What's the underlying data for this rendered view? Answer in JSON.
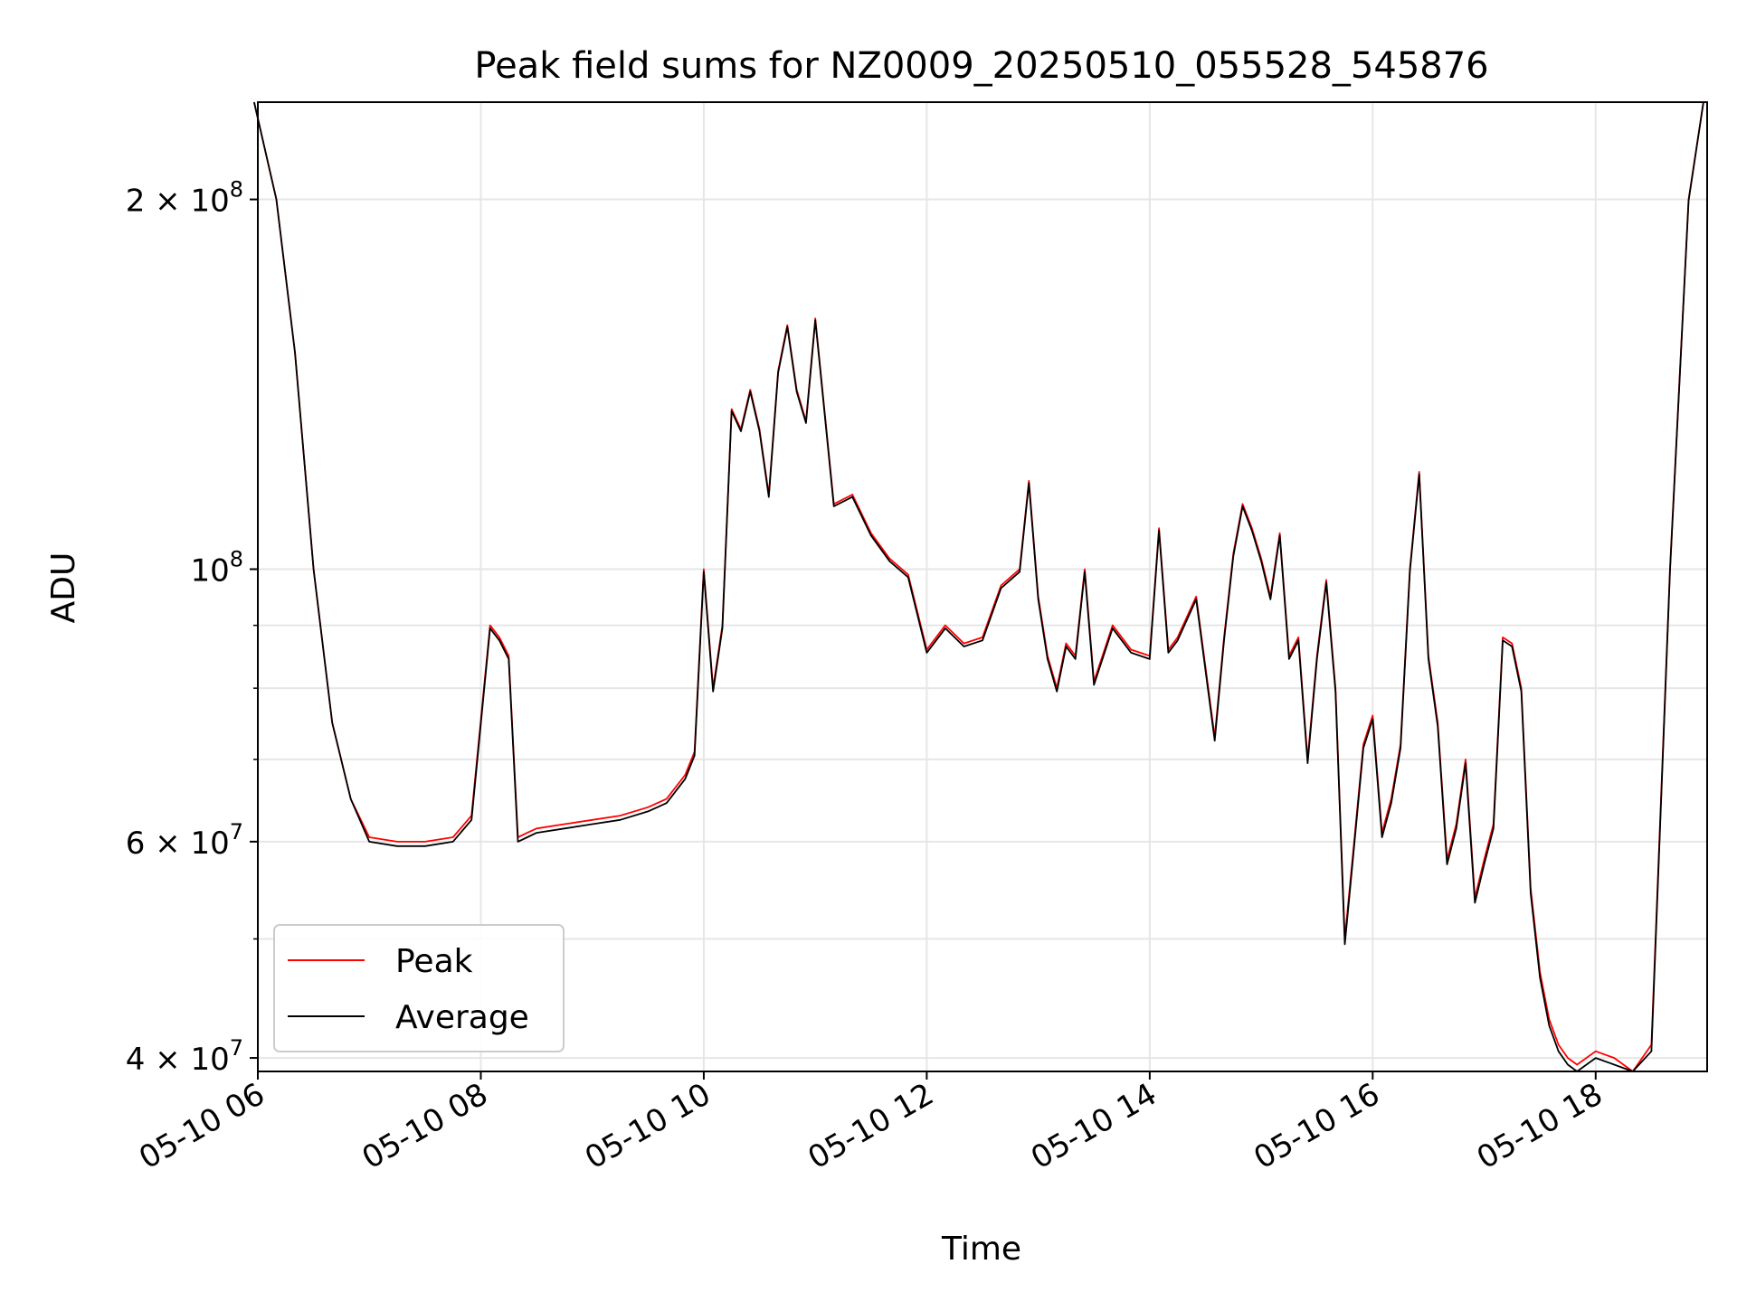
{
  "chart_data": {
    "type": "line",
    "title": "Peak field sums for NZ0009_20250510_055528_545876",
    "xlabel": "Time",
    "ylabel": "ADU",
    "yscale": "log",
    "ylim": [
      39000000,
      240000000
    ],
    "xlim": [
      "05-10 06:00",
      "05-10 19:00"
    ],
    "grid": true,
    "legend_position": "lower-left",
    "x_ticks": [
      "05-10 06",
      "05-10 08",
      "05-10 10",
      "05-10 12",
      "05-10 14",
      "05-10 16",
      "05-10 18"
    ],
    "y_ticks": [
      {
        "value": 40000000,
        "mantissa": "4",
        "exponent": "7"
      },
      {
        "value": 60000000,
        "mantissa": "6",
        "exponent": "7"
      },
      {
        "value": 100000000,
        "mantissa": "",
        "exponent": "8"
      },
      {
        "value": 200000000,
        "mantissa": "2",
        "exponent": "8"
      }
    ],
    "x": [
      "05-10 05:58",
      "05-10 06:10",
      "05-10 06:20",
      "05-10 06:30",
      "05-10 06:40",
      "05-10 06:50",
      "05-10 07:00",
      "05-10 07:15",
      "05-10 07:30",
      "05-10 07:45",
      "05-10 07:55",
      "05-10 08:05",
      "05-10 08:10",
      "05-10 08:15",
      "05-10 08:20",
      "05-10 08:25",
      "05-10 08:30",
      "05-10 08:45",
      "05-10 09:00",
      "05-10 09:15",
      "05-10 09:30",
      "05-10 09:40",
      "05-10 09:50",
      "05-10 09:55",
      "05-10 10:00",
      "05-10 10:05",
      "05-10 10:10",
      "05-10 10:15",
      "05-10 10:20",
      "05-10 10:25",
      "05-10 10:30",
      "05-10 10:35",
      "05-10 10:40",
      "05-10 10:45",
      "05-10 10:50",
      "05-10 10:55",
      "05-10 11:00",
      "05-10 11:10",
      "05-10 11:20",
      "05-10 11:30",
      "05-10 11:40",
      "05-10 11:50",
      "05-10 12:00",
      "05-10 12:10",
      "05-10 12:20",
      "05-10 12:30",
      "05-10 12:40",
      "05-10 12:50",
      "05-10 12:55",
      "05-10 13:00",
      "05-10 13:05",
      "05-10 13:10",
      "05-10 13:15",
      "05-10 13:20",
      "05-10 13:25",
      "05-10 13:30",
      "05-10 13:40",
      "05-10 13:50",
      "05-10 14:00",
      "05-10 14:05",
      "05-10 14:10",
      "05-10 14:15",
      "05-10 14:25",
      "05-10 14:35",
      "05-10 14:40",
      "05-10 14:45",
      "05-10 14:50",
      "05-10 14:55",
      "05-10 15:00",
      "05-10 15:05",
      "05-10 15:10",
      "05-10 15:15",
      "05-10 15:20",
      "05-10 15:25",
      "05-10 15:30",
      "05-10 15:35",
      "05-10 15:40",
      "05-10 15:45",
      "05-10 15:50",
      "05-10 15:55",
      "05-10 16:00",
      "05-10 16:05",
      "05-10 16:10",
      "05-10 16:15",
      "05-10 16:20",
      "05-10 16:25",
      "05-10 16:30",
      "05-10 16:35",
      "05-10 16:40",
      "05-10 16:45",
      "05-10 16:50",
      "05-10 16:55",
      "05-10 17:00",
      "05-10 17:05",
      "05-10 17:10",
      "05-10 17:15",
      "05-10 17:20",
      "05-10 17:25",
      "05-10 17:30",
      "05-10 17:35",
      "05-10 17:40",
      "05-10 17:45",
      "05-10 17:50",
      "05-10 18:00",
      "05-10 18:10",
      "05-10 18:20",
      "05-10 18:30",
      "05-10 18:40",
      "05-10 18:50",
      "05-10 18:58"
    ],
    "series": [
      {
        "name": "Peak",
        "color": "#ff0000",
        "values": [
          240000000,
          200000000,
          150000000,
          100000000,
          75000000,
          65000000,
          60500000,
          60000000,
          60000000,
          60500000,
          63000000,
          90000000,
          88000000,
          85000000,
          60500000,
          61000000,
          61500000,
          62000000,
          62500000,
          63000000,
          64000000,
          65000000,
          68000000,
          71000000,
          100000000,
          80000000,
          90000000,
          135000000,
          130000000,
          140000000,
          130000000,
          115000000,
          145000000,
          158000000,
          140000000,
          132000000,
          160000000,
          113000000,
          115000000,
          107000000,
          102000000,
          99000000,
          86000000,
          90000000,
          87000000,
          88000000,
          97000000,
          100000000,
          118000000,
          95000000,
          85000000,
          80000000,
          87000000,
          85000000,
          100000000,
          81000000,
          90000000,
          86000000,
          85000000,
          108000000,
          86000000,
          88000000,
          95000000,
          73000000,
          88000000,
          103000000,
          113000000,
          108000000,
          102000000,
          95000000,
          107000000,
          85000000,
          88000000,
          70000000,
          85000000,
          98000000,
          80000000,
          50000000,
          60000000,
          72000000,
          76000000,
          61000000,
          65000000,
          72000000,
          100000000,
          120000000,
          85000000,
          75000000,
          58000000,
          62000000,
          70000000,
          54000000,
          58000000,
          62000000,
          88000000,
          87000000,
          80000000,
          55000000,
          47000000,
          43000000,
          41000000,
          40000000,
          39500000,
          40500000,
          40000000,
          39000000,
          41000000,
          100000000,
          200000000,
          240000000
        ]
      },
      {
        "name": "Average",
        "color": "#000000",
        "values": [
          240000000,
          200000000,
          150000000,
          100000000,
          75000000,
          65000000,
          60000000,
          59500000,
          59500000,
          60000000,
          62500000,
          89500000,
          87500000,
          84500000,
          60000000,
          60500000,
          61000000,
          61500000,
          62000000,
          62500000,
          63500000,
          64500000,
          67500000,
          70500000,
          99500000,
          79500000,
          89500000,
          134500000,
          129500000,
          139500000,
          129500000,
          114500000,
          144500000,
          157500000,
          139500000,
          131500000,
          159500000,
          112500000,
          114500000,
          106500000,
          101500000,
          98500000,
          85500000,
          89500000,
          86500000,
          87500000,
          96500000,
          99500000,
          117500000,
          94500000,
          84500000,
          79500000,
          86500000,
          84500000,
          99500000,
          80500000,
          89500000,
          85500000,
          84500000,
          107500000,
          85500000,
          87500000,
          94500000,
          72500000,
          87500000,
          102500000,
          112500000,
          107500000,
          101500000,
          94500000,
          106500000,
          84500000,
          87500000,
          69500000,
          84500000,
          97500000,
          79500000,
          49500000,
          59500000,
          71500000,
          75500000,
          60500000,
          64500000,
          71500000,
          99500000,
          119500000,
          84500000,
          74500000,
          57500000,
          61500000,
          69500000,
          53500000,
          57500000,
          61500000,
          87500000,
          86500000,
          79500000,
          54500000,
          46500000,
          42500000,
          40500000,
          39500000,
          39000000,
          40000000,
          39500000,
          38800000,
          40500000,
          99500000,
          199500000,
          240000000
        ]
      }
    ]
  }
}
